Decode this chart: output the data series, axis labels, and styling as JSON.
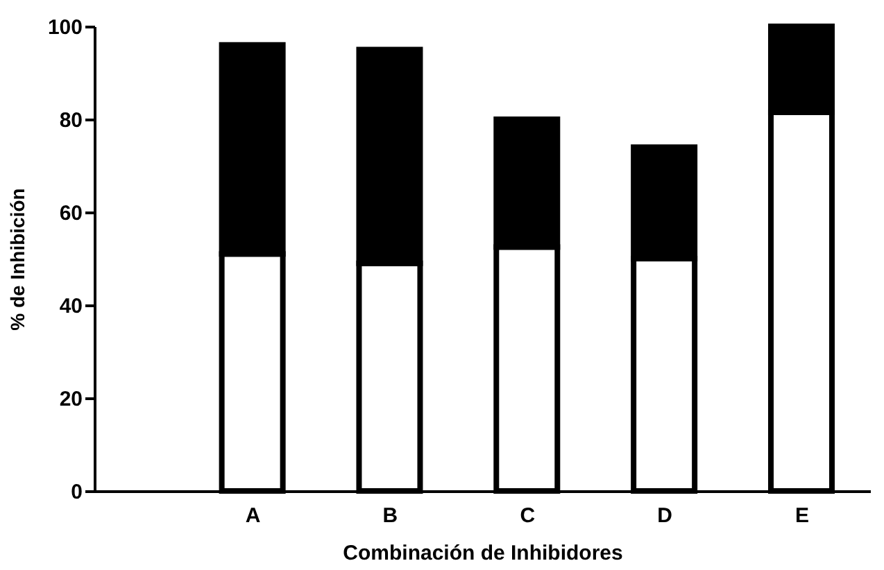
{
  "chart_data": {
    "type": "bar",
    "xlabel": "Combinación de Inhibidores",
    "ylabel": "% de Inhibición",
    "categories": [
      "A",
      "B",
      "C",
      "D",
      "E"
    ],
    "stacked": true,
    "series": [
      {
        "color": "#ffffff",
        "values": [
          51,
          49,
          52.5,
          50,
          81.5
        ]
      },
      {
        "color": "#000000",
        "values": [
          45,
          46,
          27.5,
          24,
          18.5
        ]
      }
    ],
    "ylim": [
      0,
      100
    ],
    "yticks": [
      0,
      20,
      40,
      60,
      80,
      100
    ],
    "grid": false
  }
}
